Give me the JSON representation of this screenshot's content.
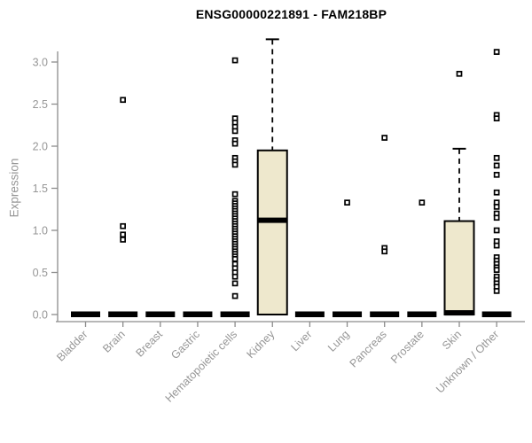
{
  "colors": {
    "box_fill": "#EEE8CD",
    "box_stroke": "#000000",
    "median": "#000000",
    "axis": "#8c8c8c",
    "tick_label": "#969696",
    "title": "#000000",
    "outlier_fill": "#ffffff",
    "outlier_stroke": "#000000",
    "background": "#ffffff"
  },
  "chart_data": {
    "type": "boxplot",
    "title": "ENSG00000221891 - FAM218BP",
    "xlabel": "",
    "ylabel": "Expression",
    "ylim": [
      0,
      3.3
    ],
    "yticks": [
      0,
      0.5,
      1,
      1.5,
      2,
      2.5,
      3
    ],
    "grid": "off",
    "legend": "none",
    "categories": [
      "Bladder",
      "Brain",
      "Breast",
      "Gastric",
      "Hematopoietic cells",
      "Kidney",
      "Liver",
      "Lung",
      "Pancreas",
      "Prostate",
      "Skin",
      "Unknown / Other"
    ],
    "boxes": [
      {
        "category": "Bladder",
        "min": 0,
        "q1": 0,
        "median": 0,
        "q3": 0,
        "max": 0,
        "outliers": []
      },
      {
        "category": "Brain",
        "min": 0,
        "q1": 0,
        "median": 0,
        "q3": 0,
        "max": 0,
        "outliers": [
          2.55,
          1.05,
          0.95,
          0.89
        ]
      },
      {
        "category": "Breast",
        "min": 0,
        "q1": 0,
        "median": 0,
        "q3": 0,
        "max": 0,
        "outliers": []
      },
      {
        "category": "Gastric",
        "min": 0,
        "q1": 0,
        "median": 0,
        "q3": 0,
        "max": 0,
        "outliers": []
      },
      {
        "category": "Hematopoietic cells",
        "min": 0,
        "q1": 0,
        "median": 0,
        "q3": 0,
        "max": 0,
        "outliers": [
          3.02,
          2.33,
          2.28,
          2.23,
          2.18,
          2.07,
          2.03,
          1.86,
          1.82,
          1.78,
          1.43,
          1.35,
          1.32,
          1.29,
          1.26,
          1.23,
          1.2,
          1.17,
          1.14,
          1.11,
          1.08,
          1.05,
          1.02,
          0.99,
          0.96,
          0.93,
          0.9,
          0.87,
          0.84,
          0.81,
          0.78,
          0.75,
          0.72,
          0.69,
          0.66,
          0.6,
          0.55,
          0.5,
          0.45,
          0.37,
          0.22
        ]
      },
      {
        "category": "Kidney",
        "min": 0,
        "q1": 0,
        "median": 1.12,
        "q3": 1.95,
        "max": 3.27,
        "outliers": []
      },
      {
        "category": "Liver",
        "min": 0,
        "q1": 0,
        "median": 0,
        "q3": 0,
        "max": 0,
        "outliers": []
      },
      {
        "category": "Lung",
        "min": 0,
        "q1": 0,
        "median": 0,
        "q3": 0,
        "max": 0,
        "outliers": [
          1.33
        ]
      },
      {
        "category": "Pancreas",
        "min": 0,
        "q1": 0,
        "median": 0,
        "q3": 0,
        "max": 0,
        "outliers": [
          2.1,
          0.79,
          0.75
        ]
      },
      {
        "category": "Prostate",
        "min": 0,
        "q1": 0,
        "median": 0,
        "q3": 0,
        "max": 0,
        "outliers": [
          1.33
        ]
      },
      {
        "category": "Skin",
        "min": 0,
        "q1": 0,
        "median": 0.02,
        "q3": 1.11,
        "max": 1.97,
        "outliers": [
          2.86
        ]
      },
      {
        "category": "Unknown / Other",
        "min": 0,
        "q1": 0,
        "median": 0,
        "q3": 0,
        "max": 0,
        "outliers": [
          3.12,
          2.37,
          2.33,
          1.86,
          1.77,
          1.66,
          1.45,
          1.33,
          1.28,
          1.2,
          1.15,
          1.0,
          0.87,
          0.82,
          0.68,
          0.64,
          0.6,
          0.56,
          0.53,
          0.45,
          0.41,
          0.37,
          0.33,
          0.28
        ]
      }
    ]
  }
}
